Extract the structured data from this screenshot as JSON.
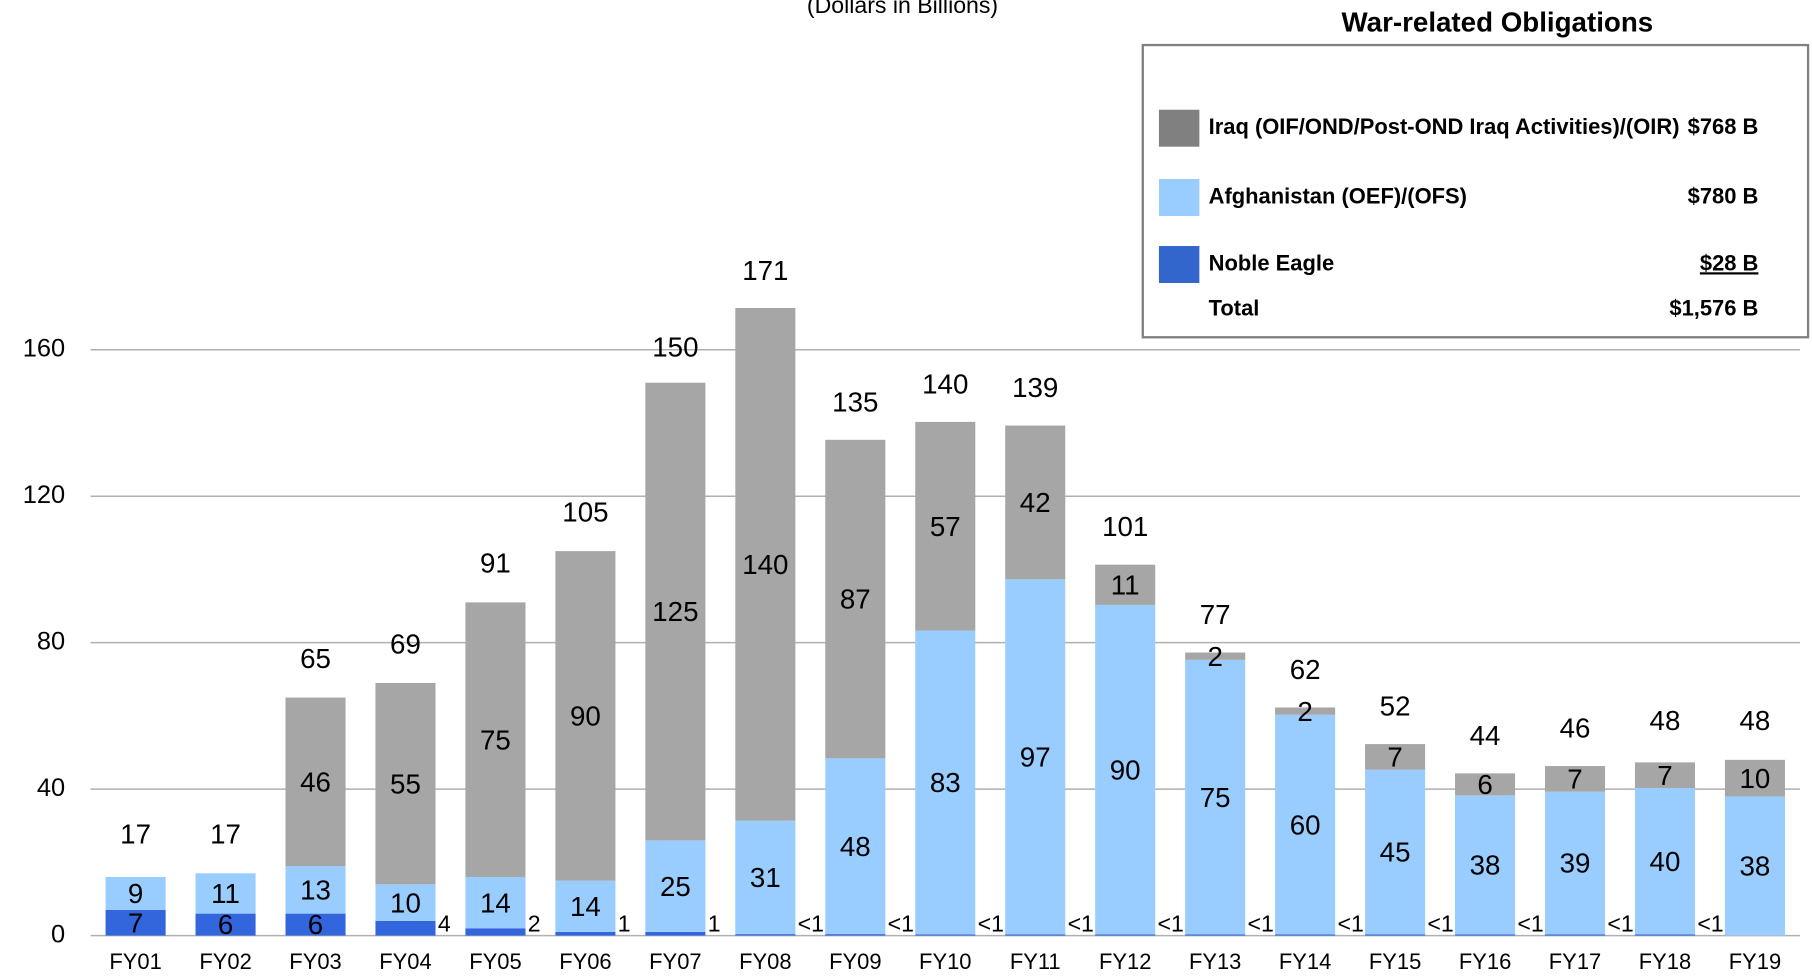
{
  "chart_data": {
    "type": "stacked_bar",
    "subtitle": "(Dollars in Billions)",
    "categories": [
      "FY01",
      "FY02",
      "FY03",
      "FY04",
      "FY05",
      "FY06",
      "FY07",
      "FY08",
      "FY09",
      "FY10",
      "FY11",
      "FY12",
      "FY13",
      "FY14",
      "FY15",
      "FY16",
      "FY17",
      "FY18",
      "FY19"
    ],
    "series": [
      {
        "name": "Iraq (OIF/OND/Post-OND Iraq Activities)/(OIR)",
        "color": "#a6a6a6",
        "legend_color": "#808080",
        "values": [
          null,
          null,
          46,
          55,
          75,
          90,
          125,
          140,
          87,
          57,
          42,
          11,
          2,
          2,
          7,
          6,
          7,
          7,
          10
        ]
      },
      {
        "name": "Afghanistan (OEF)/(OFS)",
        "color": "#99ccff",
        "legend_color": "#99ccff",
        "values": [
          9,
          11,
          13,
          10,
          14,
          14,
          25,
          31,
          48,
          83,
          97,
          90,
          75,
          60,
          45,
          38,
          39,
          40,
          38
        ]
      },
      {
        "name": "Noble Eagle",
        "color": "#3366dd",
        "legend_color": "#3366cc",
        "values": [
          7,
          6,
          6,
          4,
          2,
          1,
          1,
          0.4,
          0.4,
          0.3,
          0.3,
          0.3,
          0.3,
          0.3,
          0.3,
          0.3,
          0.3,
          0.3,
          null
        ],
        "value_labels": [
          "7",
          "6",
          "6",
          "4",
          "2",
          "1",
          "1",
          "<1",
          "<1",
          "<1",
          "<1",
          "<1",
          "<1",
          "<1",
          "<1",
          "<1",
          "<1",
          "<1",
          null
        ]
      }
    ],
    "totals": [
      17,
      17,
      65,
      69,
      91,
      105,
      150,
      171,
      135,
      140,
      139,
      101,
      77,
      62,
      52,
      44,
      46,
      48,
      48
    ],
    "ylim": [
      0,
      200
    ],
    "yticks": [
      0,
      40,
      80,
      120,
      160
    ],
    "grid": true,
    "legend": {
      "title": "War-related Obligations",
      "amounts": [
        "$768 B",
        "$780 B",
        "$28 B"
      ],
      "total_label": "Total",
      "total_amount": "$1,576 B"
    }
  }
}
